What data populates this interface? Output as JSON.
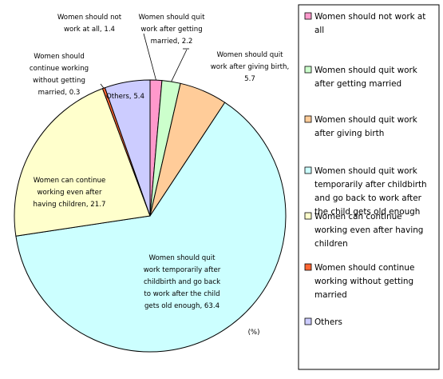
{
  "chart_data": {
    "type": "pie",
    "unit_label": "(%)",
    "categories": [
      "Women should not work at all",
      "Women should quit work after getting married",
      "Women should quit work after giving birth",
      "Women should quit work temporarily after childbirth and go back to work after the child gets old enough",
      "Women can continue working even after having children",
      "Women should continue working without getting married",
      "Others"
    ],
    "values": [
      1.4,
      2.2,
      5.7,
      63.4,
      21.7,
      0.3,
      5.4
    ],
    "colors": [
      "#ff99cc",
      "#ccffcc",
      "#ffcc99",
      "#ccffff",
      "#ffffcc",
      "#ff6633",
      "#ccccff"
    ],
    "slice_labels": [
      [
        "Women should not",
        "work at all, 1.4"
      ],
      [
        "Women should quit",
        "work after getting",
        "married, 2.2"
      ],
      [
        "Women should quit",
        "work after giving birth,",
        "5.7"
      ],
      [
        "Women should quit",
        "work temporarily after",
        "childbirth and go back",
        "to work after the child",
        "gets old enough, 63.4"
      ],
      [
        "Women can continue",
        "working even after",
        "having children, 21.7"
      ],
      [
        "Women should",
        "continue working",
        "without getting",
        "married, 0.3"
      ],
      [
        "Others, 5.4"
      ]
    ],
    "legend": [
      [
        "Women should not work at",
        "all"
      ],
      [
        "Women should quit work",
        "after getting married"
      ],
      [
        "Women should quit work",
        "after giving birth"
      ],
      [
        "Women should quit work",
        "temporarily after childbirth",
        "and go back to work after",
        "the child gets old enough"
      ],
      [
        "Women can continue",
        "working even after having",
        "children"
      ],
      [
        "Women should continue",
        "working without getting",
        "married"
      ],
      [
        "Others"
      ]
    ],
    "legend_placement": "right"
  }
}
